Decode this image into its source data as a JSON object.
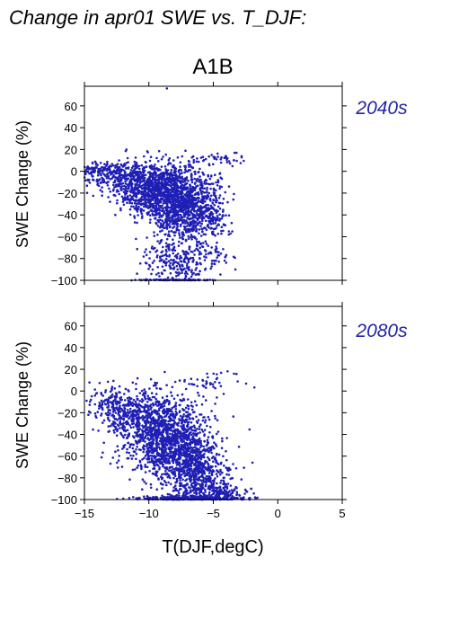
{
  "figure": {
    "title": "Change in apr01 SWE vs. T_DJF:",
    "scenario": "A1B",
    "xlabel": "T(DJF,degC)",
    "colors": {
      "points": "#1f1fb4",
      "period_label": "#2323a8",
      "axes": "#000000"
    }
  },
  "chart_data": [
    {
      "type": "scatter",
      "panel_label": "2040s",
      "ylabel": "SWE Change (%)",
      "xlim": [
        -15,
        5
      ],
      "ylim": [
        -100,
        78
      ],
      "xticks": [
        -15,
        -10,
        -5,
        0,
        5
      ],
      "yticks": [
        -100,
        -80,
        -60,
        -40,
        -20,
        0,
        20,
        40,
        60
      ],
      "x_tick_labels_shown": false,
      "grid": false,
      "points_note": "dense cloud; points generated from the distribution described by clusters",
      "clusters": [
        {
          "cx": -9.2,
          "cy": -18,
          "sx": 1.6,
          "sy": 13,
          "n": 1100
        },
        {
          "cx": -7.2,
          "cy": -35,
          "sx": 1.3,
          "sy": 17,
          "n": 700
        },
        {
          "cx": -12.0,
          "cy": -4,
          "sx": 1.5,
          "sy": 6,
          "n": 260
        },
        {
          "cx": -13.8,
          "cy": 1,
          "sx": 0.8,
          "sy": 3,
          "n": 70
        },
        {
          "cx": -5.3,
          "cy": -38,
          "sx": 0.8,
          "sy": 18,
          "n": 160
        },
        {
          "cx": -7.5,
          "cy": -82,
          "sx": 1.5,
          "sy": 11,
          "n": 260
        },
        {
          "cx": -4.5,
          "cy": 11,
          "sx": 1.2,
          "sy": 2.5,
          "n": 40
        },
        {
          "cx": -8.0,
          "cy": -100,
          "sx": 1.8,
          "sy": 0.3,
          "n": 90
        }
      ],
      "outliers": [
        [
          -8.6,
          76
        ],
        [
          -3.2,
          17
        ],
        [
          -11.0,
          -62
        ],
        [
          -3.8,
          -58
        ],
        [
          -12.6,
          -40
        ]
      ]
    },
    {
      "type": "scatter",
      "panel_label": "2080s",
      "ylabel": "SWE Change (%)",
      "xlim": [
        -15,
        5
      ],
      "ylim": [
        -100,
        78
      ],
      "xticks": [
        -15,
        -10,
        -5,
        0,
        5
      ],
      "yticks": [
        -100,
        -80,
        -60,
        -40,
        -20,
        0,
        20,
        40,
        60
      ],
      "x_tick_labels_shown": true,
      "grid": false,
      "clusters": [
        {
          "cx": -9.3,
          "cy": -38,
          "sx": 1.5,
          "sy": 18,
          "n": 950
        },
        {
          "cx": -7.2,
          "cy": -60,
          "sx": 1.3,
          "sy": 20,
          "n": 800
        },
        {
          "cx": -11.8,
          "cy": -20,
          "sx": 1.2,
          "sy": 10,
          "n": 240
        },
        {
          "cx": -5.5,
          "cy": -82,
          "sx": 1.0,
          "sy": 12,
          "n": 300
        },
        {
          "cx": -7.0,
          "cy": -99,
          "sx": 2.0,
          "sy": 1.2,
          "n": 320
        },
        {
          "cx": -4.2,
          "cy": -95,
          "sx": 1.0,
          "sy": 4,
          "n": 90
        },
        {
          "cx": -5.5,
          "cy": 8,
          "sx": 1.3,
          "sy": 5,
          "n": 40
        },
        {
          "cx": -13.2,
          "cy": -8,
          "sx": 0.9,
          "sy": 8,
          "n": 60
        }
      ],
      "outliers": [
        [
          -3.4,
          16
        ],
        [
          -2.2,
          -100
        ],
        [
          -14.5,
          -8
        ],
        [
          -2.8,
          -100
        ]
      ]
    }
  ]
}
